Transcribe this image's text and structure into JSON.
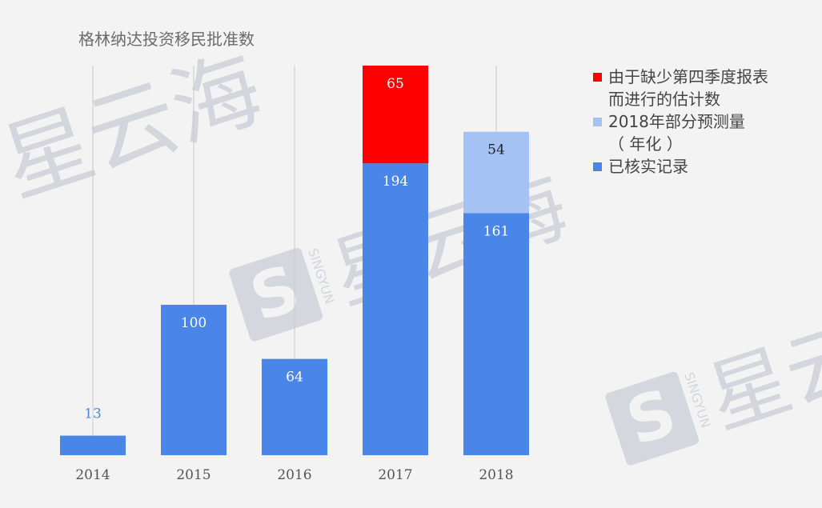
{
  "chart_data": {
    "type": "bar",
    "stacked": true,
    "title": "格林纳达投资移民批准数",
    "categories": [
      "2014",
      "2015",
      "2016",
      "2017",
      "2018"
    ],
    "series": [
      {
        "name": "已核实记录",
        "values": [
          13,
          100,
          64,
          194,
          161
        ],
        "color": "#4a86e8",
        "label_color": "#ffffff"
      },
      {
        "name": "由于缺少第四季度报表而进行的估计数",
        "values": [
          0,
          0,
          0,
          65,
          0
        ],
        "color": "#ff0000",
        "label_color": "#ffffff"
      },
      {
        "name": "2018年部分预测量（年化）",
        "values": [
          0,
          0,
          0,
          0,
          54
        ],
        "color": "#a4c2f4",
        "label_color": "#222222"
      }
    ],
    "legend": {
      "position": "right",
      "items": [
        {
          "color": "#ff0000",
          "lines": [
            "由于缺少第四季度报表",
            "而进行的估计数"
          ]
        },
        {
          "color": "#a4c2f4",
          "lines": [
            "2018年部分预测量",
            "（ 年化 ）"
          ]
        },
        {
          "color": "#4a86e8",
          "lines": [
            "已核实记录"
          ]
        }
      ]
    },
    "ylim": [
      0,
      260
    ],
    "grid": "vertical"
  },
  "watermark": {
    "text": "星云海",
    "brand": "SINGYUN",
    "color": "#b9bfcc"
  }
}
